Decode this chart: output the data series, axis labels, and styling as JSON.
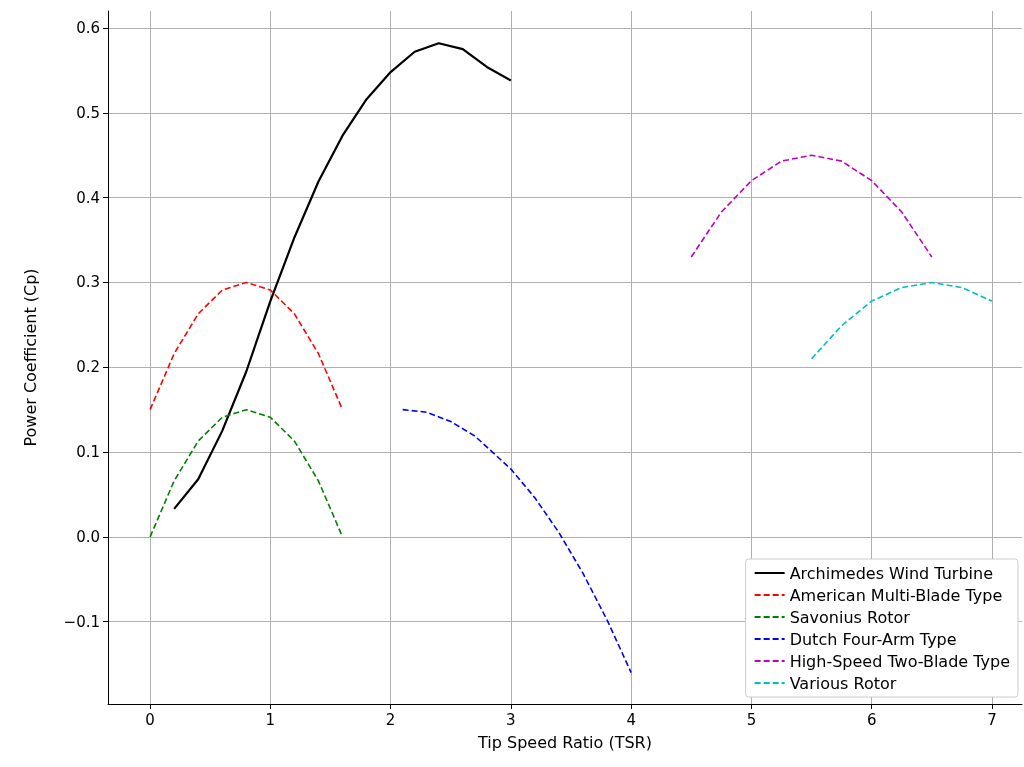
{
  "chart_data": {
    "type": "line",
    "xlabel": "Tip Speed Ratio (TSR)",
    "ylabel": "Power Coefficient (Cp)",
    "xlim": [
      -0.35,
      7.25
    ],
    "xticks": [
      0,
      1,
      2,
      3,
      4,
      5,
      6,
      7
    ],
    "ylim": [
      -0.197,
      0.62
    ],
    "yticks": [
      {
        "value": -0.1,
        "label": "−0.1"
      },
      {
        "value": 0,
        "label": "0.0"
      },
      {
        "value": 0.1,
        "label": "0.1"
      },
      {
        "value": 0.2,
        "label": "0.2"
      },
      {
        "value": 0.3,
        "label": "0.3"
      },
      {
        "value": 0.4,
        "label": "0.4"
      },
      {
        "value": 0.5,
        "label": "0.5"
      },
      {
        "value": 0.6,
        "label": "0.6"
      }
    ],
    "grid": true,
    "legend": "bottom right",
    "marker": "none",
    "series": [
      {
        "name": "Archimedes Wind Turbine",
        "color": "#000000",
        "line_style": "solid",
        "x": [
          0.2,
          0.4,
          0.6,
          0.8,
          1.0,
          1.2,
          1.4,
          1.6,
          1.8,
          2.0,
          2.2,
          2.4,
          2.6,
          2.8,
          3.0
        ],
        "values": [
          0.033,
          0.068,
          0.125,
          0.195,
          0.278,
          0.353,
          0.419,
          0.473,
          0.516,
          0.548,
          0.572,
          0.582,
          0.575,
          0.554,
          0.538
        ]
      },
      {
        "name": "American Multi-Blade Type",
        "color": "#ff0000",
        "line_style": "dashed",
        "x": [
          0,
          0.2,
          0.4,
          0.6,
          0.8,
          1.0,
          1.2,
          1.4,
          1.6
        ],
        "values": [
          0.15,
          0.216,
          0.263,
          0.291,
          0.3,
          0.291,
          0.263,
          0.216,
          0.15
        ]
      },
      {
        "name": "Savonius Rotor",
        "color": "#008000",
        "line_style": "dashed",
        "x": [
          0,
          0.2,
          0.4,
          0.6,
          0.8,
          1.0,
          1.2,
          1.4,
          1.6
        ],
        "values": [
          0.0,
          0.066,
          0.113,
          0.141,
          0.15,
          0.141,
          0.113,
          0.066,
          0.0
        ]
      },
      {
        "name": "Dutch Four-Arm Type",
        "color": "#0000ff",
        "line_style": "dashed",
        "x": [
          2.1,
          2.3,
          2.5,
          2.7,
          3.0,
          3.2,
          3.4,
          3.6,
          3.8,
          4.0
        ],
        "values": [
          0.15,
          0.147,
          0.136,
          0.119,
          0.08,
          0.046,
          0.005,
          -0.043,
          -0.098,
          -0.16
        ]
      },
      {
        "name": "High-Speed Two-Blade Type",
        "color": "#bf00bf",
        "line_style": "dashed",
        "x": [
          4.5,
          4.75,
          5.0,
          5.25,
          5.5,
          5.75,
          6.0,
          6.25,
          6.5
        ],
        "values": [
          0.33,
          0.383,
          0.42,
          0.443,
          0.45,
          0.443,
          0.42,
          0.383,
          0.33
        ]
      },
      {
        "name": "Various Rotor",
        "color": "#00bfbf",
        "line_style": "dashed",
        "x": [
          5.5,
          5.75,
          6.0,
          6.25,
          6.5,
          6.75,
          7.0
        ],
        "values": [
          0.21,
          0.249,
          0.278,
          0.294,
          0.3,
          0.294,
          0.278
        ]
      }
    ]
  }
}
